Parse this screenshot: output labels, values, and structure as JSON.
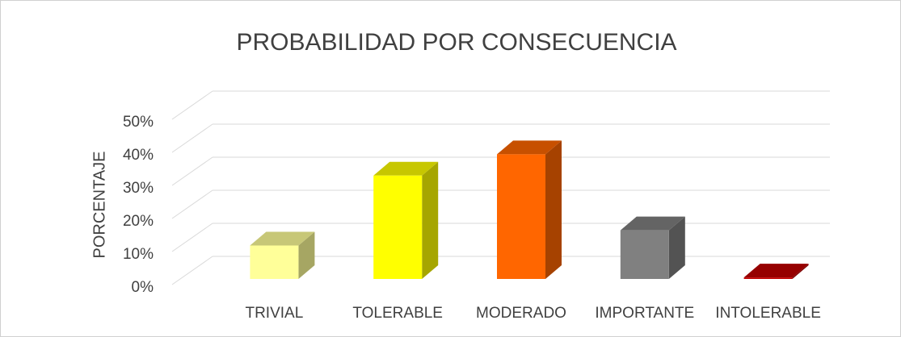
{
  "chart_data": {
    "type": "bar3d",
    "title": "PROBABILIDAD POR CONSECUENCIA",
    "y_label": "PORCENTAJE",
    "categories": [
      "TRIVIAL",
      "TOLERABLE",
      "MODERADO",
      "IMPORTANTE",
      "INTOLERABLE"
    ],
    "values": [
      11,
      34,
      41,
      16,
      0.5
    ],
    "colors": [
      "#ffff99",
      "#ffff00",
      "#ff6600",
      "#808080",
      "#c00000"
    ],
    "ylim": [
      0,
      50
    ],
    "yticks": [
      {
        "value": 0,
        "label": "0%"
      },
      {
        "value": 10,
        "label": "10%"
      },
      {
        "value": 20,
        "label": "20%"
      },
      {
        "value": 30,
        "label": "30%"
      },
      {
        "value": 40,
        "label": "40%"
      },
      {
        "value": 50,
        "label": "50%"
      }
    ],
    "grid": true
  }
}
